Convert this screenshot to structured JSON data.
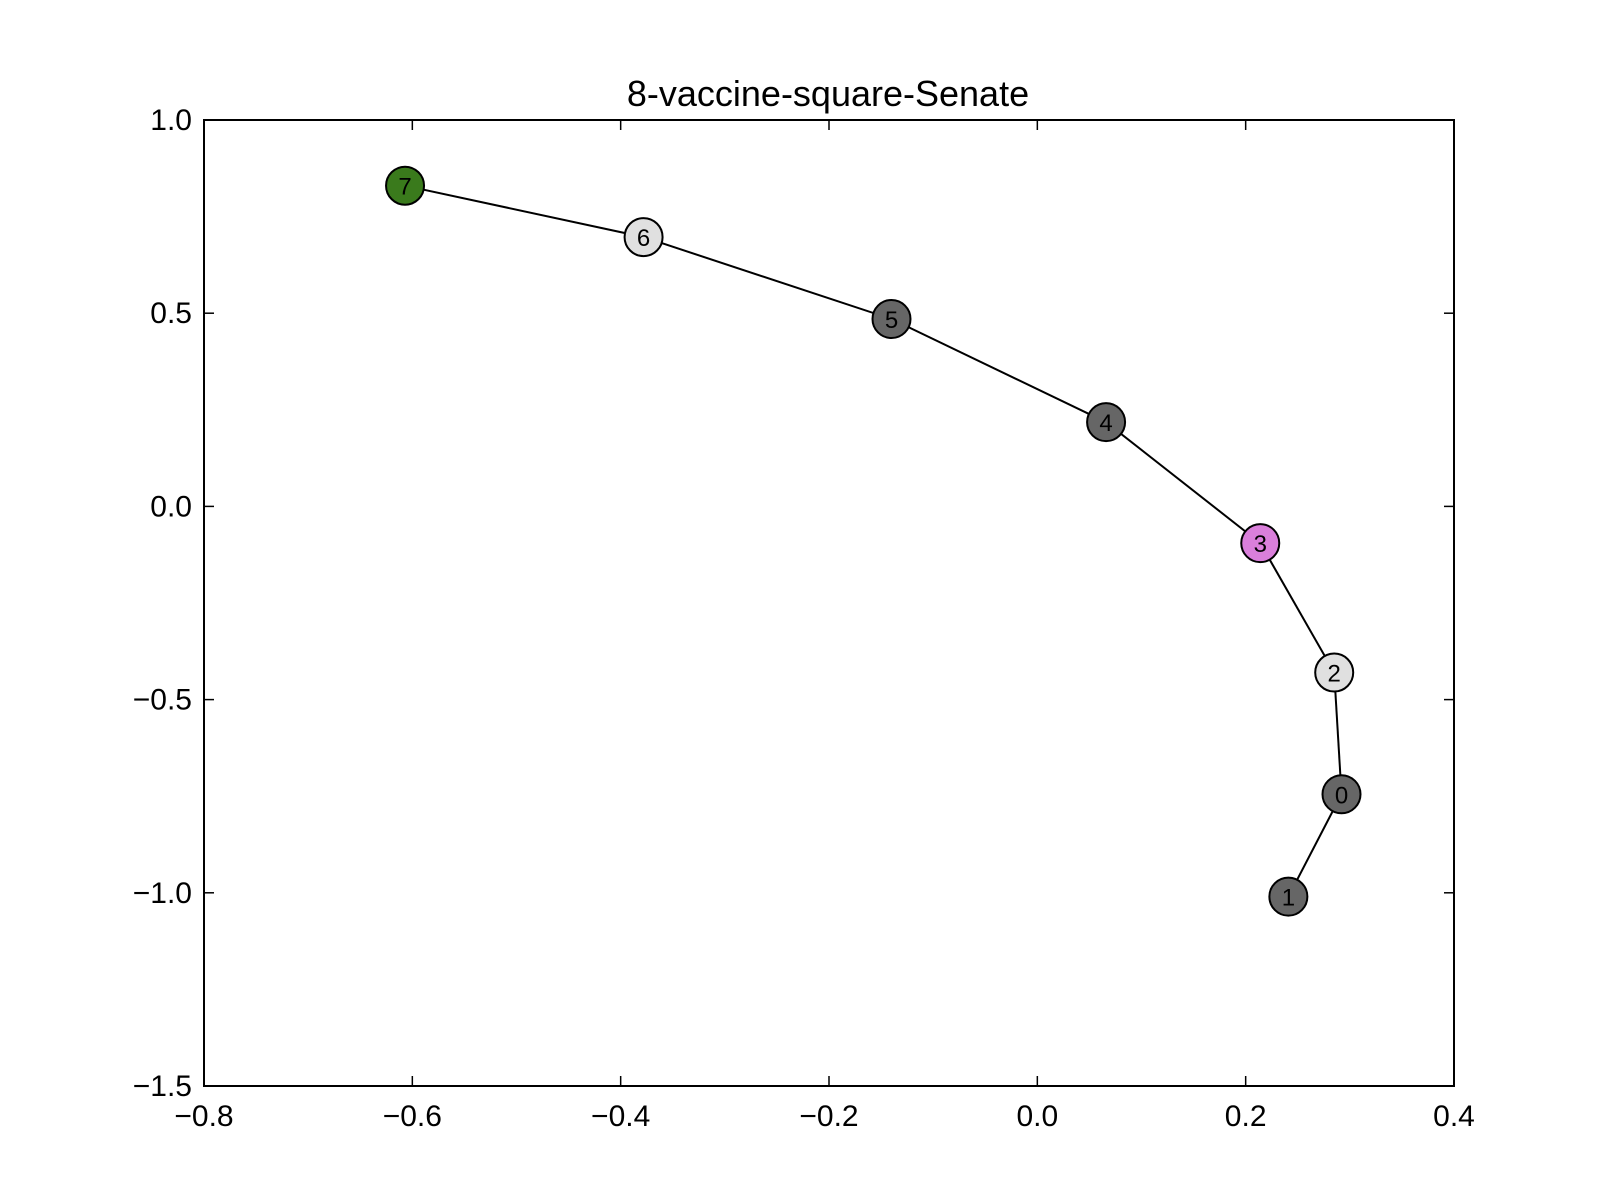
{
  "chart_data": {
    "type": "scatter",
    "title": "8-vaccine-square-Senate",
    "xlabel": "",
    "ylabel": "",
    "xlim": [
      -0.8,
      0.4
    ],
    "ylim": [
      -1.5,
      1.0
    ],
    "xticks": [
      -0.8,
      -0.6,
      -0.4,
      -0.2,
      0.0,
      0.2,
      0.4
    ],
    "xtick_labels": [
      "−0.8",
      "−0.6",
      "−0.4",
      "−0.2",
      "0.0",
      "0.2",
      "0.4"
    ],
    "yticks": [
      1.0,
      0.5,
      0.0,
      -0.5,
      -1.0,
      -1.5
    ],
    "ytick_labels": [
      "1.0",
      "0.5",
      "0.0",
      "−0.5",
      "−1.0",
      "−1.5"
    ],
    "grid": false,
    "nodes": [
      {
        "label": "0",
        "x": 0.292,
        "y": -0.745,
        "color": "#666666"
      },
      {
        "label": "1",
        "x": 0.241,
        "y": -1.01,
        "color": "#666666"
      },
      {
        "label": "2",
        "x": 0.285,
        "y": -0.43,
        "color": "#e0e0e0"
      },
      {
        "label": "3",
        "x": 0.214,
        "y": -0.095,
        "color": "#da7fdb"
      },
      {
        "label": "4",
        "x": 0.066,
        "y": 0.218,
        "color": "#666666"
      },
      {
        "label": "5",
        "x": -0.14,
        "y": 0.485,
        "color": "#666666"
      },
      {
        "label": "6",
        "x": -0.378,
        "y": 0.697,
        "color": "#e0e0e0"
      },
      {
        "label": "7",
        "x": -0.607,
        "y": 0.83,
        "color": "#3a7a1c"
      }
    ],
    "edges": [
      [
        "1",
        "0"
      ],
      [
        "0",
        "2"
      ],
      [
        "2",
        "3"
      ],
      [
        "3",
        "4"
      ],
      [
        "4",
        "5"
      ],
      [
        "5",
        "6"
      ],
      [
        "6",
        "7"
      ]
    ]
  }
}
